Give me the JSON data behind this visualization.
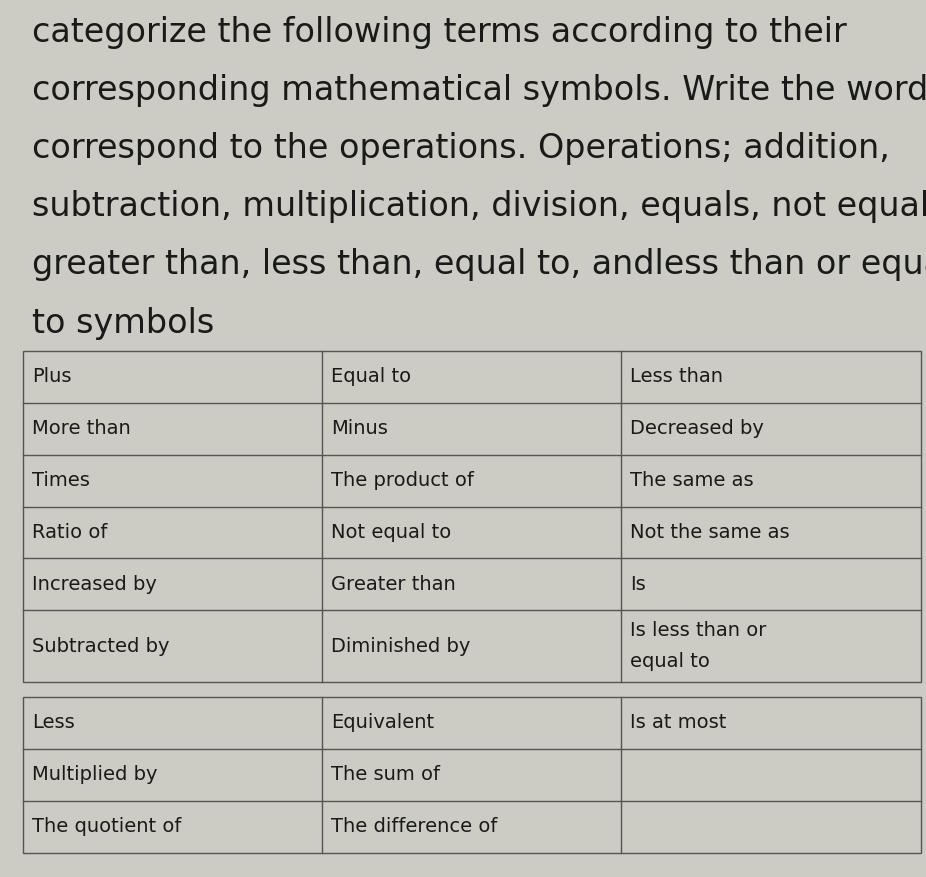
{
  "title_lines": [
    "categorize the following terms according to their",
    "corresponding mathematical symbols. Write the words",
    "correspond to the operations. Operations; addition,",
    "subtraction, multiplication, division, equals, not equal,",
    "greater than, less than, equal to, and│less than or equal",
    "to symbols"
  ],
  "bg_color": "#ccccc4",
  "border_color": "#555555",
  "text_color": "#1a1a1a",
  "col1": [
    "Plus",
    "More than",
    "Times",
    "Ratio of",
    "Increased by",
    "Subtracted by",
    "Less",
    "Multiplied by",
    "The quotient of"
  ],
  "col2": [
    "Equal to",
    "Minus",
    "The product of",
    "Not equal to",
    "Greater than",
    "Diminished by",
    "Equivalent",
    "The sum of",
    "The difference of"
  ],
  "col3": [
    "Less than",
    "Decreased by",
    "The same as",
    "Not the same as",
    "Is",
    "Is less than or\nequal to",
    "Is at most",
    "",
    ""
  ],
  "upper_rows": 6,
  "lower_rows": 3,
  "title_fontsize": 24,
  "cell_fontsize": 14
}
